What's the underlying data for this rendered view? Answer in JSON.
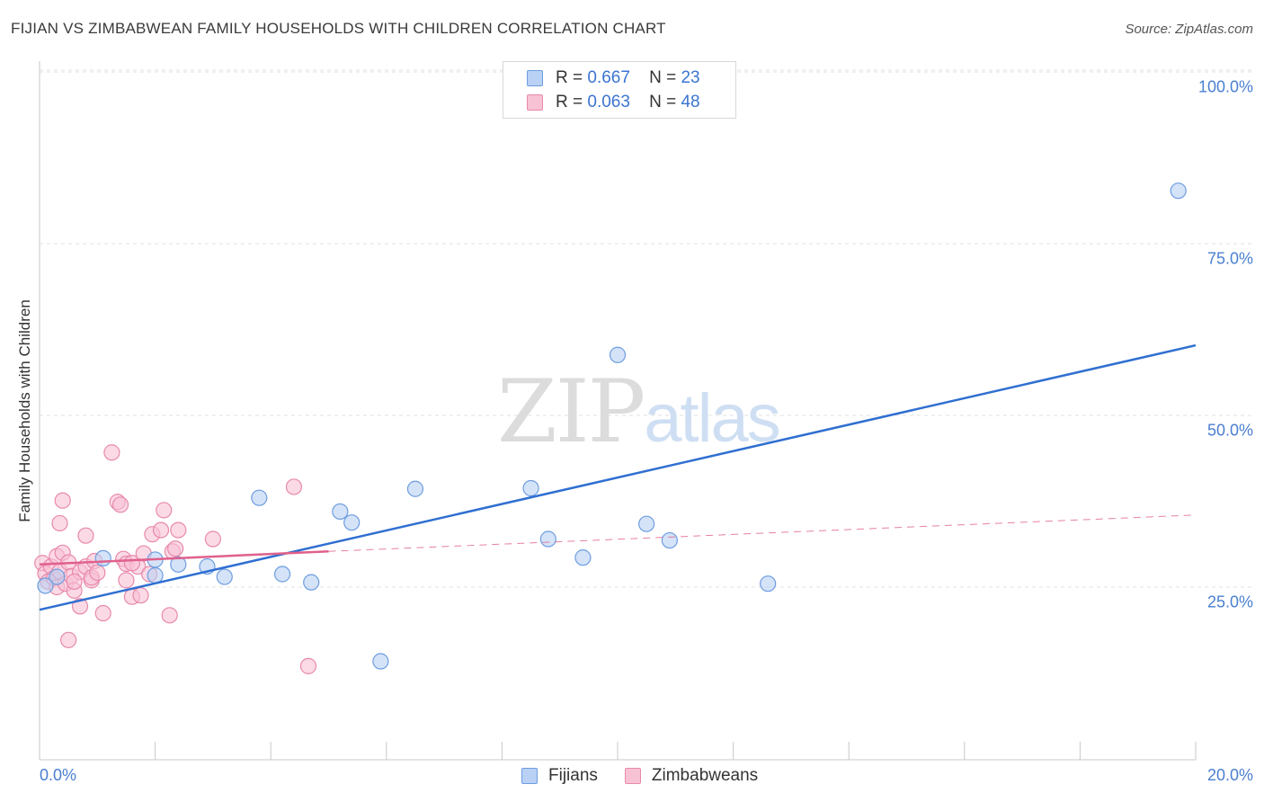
{
  "chart_data": {
    "type": "scatter",
    "title": "FIJIAN VS ZIMBABWEAN FAMILY HOUSEHOLDS WITH CHILDREN CORRELATION CHART",
    "source": "Source: ZipAtlas.com",
    "ylabel": "Family Households with Children",
    "xlabel": "",
    "xlim": [
      0,
      20
    ],
    "ylim": [
      0,
      105
    ],
    "x_tick_labels": [
      "0.0%",
      "20.0%"
    ],
    "y_ticks": [
      {
        "value": 25,
        "label": "25.0%"
      },
      {
        "value": 50,
        "label": "50.0%"
      },
      {
        "value": 75,
        "label": "75.0%"
      },
      {
        "value": 100,
        "label": "100.0%"
      }
    ],
    "grid": true,
    "legend": {
      "position": "top-center",
      "rows": [
        {
          "r_label": "R =",
          "r_value": "0.667",
          "n_label": "N =",
          "n_value": "23"
        },
        {
          "r_label": "R =",
          "r_value": "0.063",
          "n_label": "N =",
          "n_value": "48"
        }
      ]
    },
    "watermark": {
      "zip": "ZIP",
      "atlas": "atlas"
    },
    "colors": {
      "fijians_fill": "#b9d1f4",
      "fijians_stroke": "#6d9de0",
      "fijians_line": "#2f6fd1",
      "zimbabweans_fill": "#f8c2d5",
      "zimbabweans_stroke": "#e889ab",
      "zimbabweans_line": "#e0608c",
      "grid": "#e0e0e0",
      "axis": "#c8c8c8"
    },
    "series": [
      {
        "name": "Fijians",
        "points": [
          [
            0.3,
            26.5
          ],
          [
            1.1,
            29.2
          ],
          [
            2.0,
            29.0
          ],
          [
            2.0,
            26.7
          ],
          [
            2.4,
            28.3
          ],
          [
            2.9,
            28.0
          ],
          [
            3.2,
            26.5
          ],
          [
            3.8,
            38.0
          ],
          [
            4.2,
            26.9
          ],
          [
            4.7,
            25.7
          ],
          [
            5.2,
            36.0
          ],
          [
            5.4,
            34.4
          ],
          [
            5.9,
            14.2
          ],
          [
            6.5,
            39.3
          ],
          [
            8.5,
            39.4
          ],
          [
            8.8,
            32.0
          ],
          [
            9.4,
            29.3
          ],
          [
            10.0,
            58.8
          ],
          [
            10.5,
            34.2
          ],
          [
            10.9,
            31.8
          ],
          [
            12.6,
            25.5
          ],
          [
            19.7,
            82.7
          ],
          [
            0.1,
            25.2
          ]
        ],
        "trend": {
          "x": [
            0.0,
            20.0
          ],
          "y": [
            21.7,
            60.2
          ],
          "style": "solid"
        }
      },
      {
        "name": "Zimbabweans",
        "points": [
          [
            0.05,
            28.5
          ],
          [
            0.1,
            27.0
          ],
          [
            0.15,
            25.8
          ],
          [
            0.2,
            28.0
          ],
          [
            0.25,
            26.3
          ],
          [
            0.3,
            29.5
          ],
          [
            0.3,
            25.0
          ],
          [
            0.35,
            27.3
          ],
          [
            0.4,
            30.0
          ],
          [
            0.45,
            25.5
          ],
          [
            0.5,
            28.6
          ],
          [
            0.55,
            26.6
          ],
          [
            0.6,
            24.5
          ],
          [
            0.7,
            27.2
          ],
          [
            0.8,
            28.0
          ],
          [
            0.9,
            26.0
          ],
          [
            1.1,
            21.2
          ],
          [
            0.35,
            34.3
          ],
          [
            0.4,
            37.6
          ],
          [
            0.5,
            17.3
          ],
          [
            0.7,
            22.2
          ],
          [
            0.8,
            32.5
          ],
          [
            0.9,
            26.4
          ],
          [
            0.95,
            28.8
          ],
          [
            1.0,
            27.1
          ],
          [
            1.25,
            44.6
          ],
          [
            1.35,
            37.4
          ],
          [
            1.4,
            37.0
          ],
          [
            1.45,
            29.1
          ],
          [
            1.5,
            28.4
          ],
          [
            1.6,
            23.6
          ],
          [
            1.7,
            28.0
          ],
          [
            1.75,
            23.8
          ],
          [
            1.8,
            29.9
          ],
          [
            1.5,
            26.0
          ],
          [
            1.6,
            28.5
          ],
          [
            1.9,
            26.9
          ],
          [
            1.95,
            32.7
          ],
          [
            2.1,
            33.3
          ],
          [
            2.15,
            36.2
          ],
          [
            2.3,
            30.2
          ],
          [
            2.35,
            30.6
          ],
          [
            2.4,
            33.3
          ],
          [
            2.25,
            20.9
          ],
          [
            3.0,
            32.0
          ],
          [
            4.4,
            39.6
          ],
          [
            4.65,
            13.5
          ],
          [
            0.6,
            25.8
          ]
        ],
        "trend": {
          "x": [
            0.0,
            5.0
          ],
          "y": [
            28.3,
            30.2
          ],
          "style": "solid"
        },
        "trend_extension": {
          "x": [
            5.0,
            20.0
          ],
          "y": [
            30.2,
            35.5
          ],
          "style": "dashed"
        }
      }
    ]
  }
}
